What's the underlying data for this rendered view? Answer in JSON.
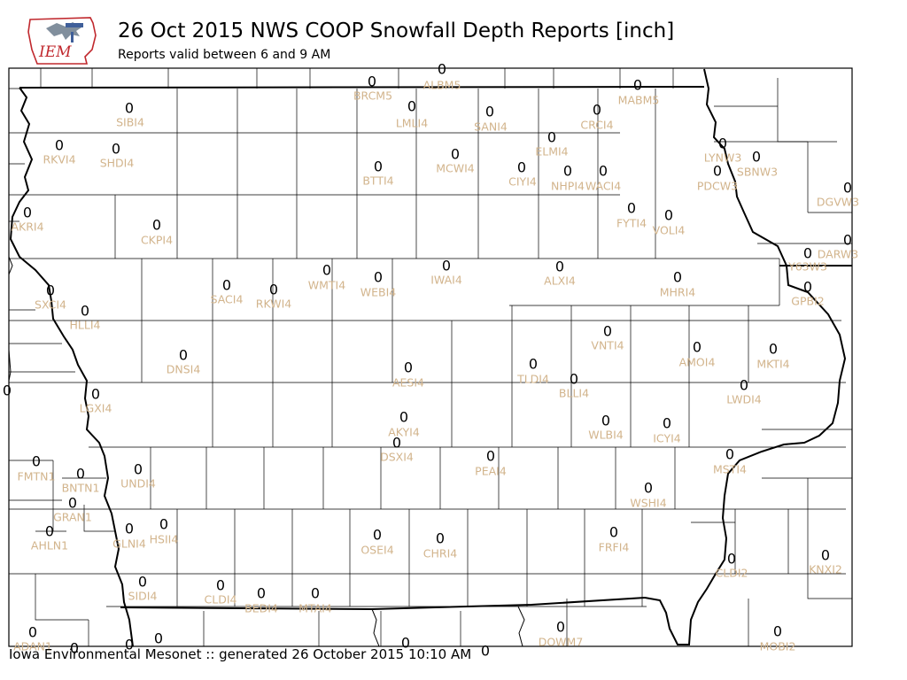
{
  "header": {
    "title": "26 Oct 2015 NWS COOP Snowfall Depth Reports [inch]",
    "subtitle": "Reports valid between 6 and 9 AM",
    "logo_text": "IEM"
  },
  "footer": {
    "text": "Iowa Environmental Mesonet :: generated 26 October 2015 10:10 AM"
  },
  "colors": {
    "label": "#d2b48c",
    "value": "#000000",
    "border": "#000000",
    "logo_red": "#c0282d"
  },
  "stations": [
    {
      "id": "BRCM5",
      "value": "0"
    },
    {
      "id": "ALBM5",
      "value": "0"
    },
    {
      "id": "MABM5",
      "value": "0"
    },
    {
      "id": "SIBI4",
      "value": "0"
    },
    {
      "id": "LMLI4",
      "value": "0"
    },
    {
      "id": "SANI4",
      "value": "0"
    },
    {
      "id": "CRCI4",
      "value": "0"
    },
    {
      "id": "RKVI4",
      "value": "0"
    },
    {
      "id": "SHDI4",
      "value": "0"
    },
    {
      "id": "ELMI4",
      "value": "0"
    },
    {
      "id": "MCWI4",
      "value": "0"
    },
    {
      "id": "LYNW3",
      "value": "0"
    },
    {
      "id": "SBNW3",
      "value": "0"
    },
    {
      "id": "BTTI4",
      "value": "0"
    },
    {
      "id": "CIYI4",
      "value": "0"
    },
    {
      "id": "NHPI4",
      "value": "0"
    },
    {
      "id": "WACI4",
      "value": "0"
    },
    {
      "id": "PDCW3",
      "value": "0"
    },
    {
      "id": "DGVW3",
      "value": "0"
    },
    {
      "id": "AKRI4",
      "value": "0"
    },
    {
      "id": "CKPI4",
      "value": "0"
    },
    {
      "id": "FYTI4",
      "value": "0"
    },
    {
      "id": "VOLI4",
      "value": "0"
    },
    {
      "id": "DARW3",
      "value": "0"
    },
    {
      "id": "Y63W3",
      "value": "0"
    },
    {
      "id": "SXCI4",
      "value": "0"
    },
    {
      "id": "SACI4",
      "value": "0"
    },
    {
      "id": "RKWI4",
      "value": "0"
    },
    {
      "id": "WMTI4",
      "value": "0"
    },
    {
      "id": "WEBI4",
      "value": "0"
    },
    {
      "id": "IWAI4",
      "value": "0"
    },
    {
      "id": "ALXI4",
      "value": "0"
    },
    {
      "id": "MHRI4",
      "value": "0"
    },
    {
      "id": "GPBI2",
      "value": "0"
    },
    {
      "id": "HLLI4",
      "value": "0"
    },
    {
      "id": "VNTI4",
      "value": "0"
    },
    {
      "id": "AMOI4",
      "value": "0"
    },
    {
      "id": "MKTI4",
      "value": "0"
    },
    {
      "id": "DNSI4",
      "value": "0"
    },
    {
      "id": "AESI4",
      "value": "0"
    },
    {
      "id": "TLDI4",
      "value": "0"
    },
    {
      "id": "BLLI4",
      "value": "0"
    },
    {
      "id": "LWDI4",
      "value": "0"
    },
    {
      "id": "LGXI4",
      "value": "0"
    },
    {
      "id": "AKYI4",
      "value": "0"
    },
    {
      "id": "WLBI4",
      "value": "0"
    },
    {
      "id": "ICYI4",
      "value": "0"
    },
    {
      "id": "DSXI4",
      "value": "0"
    },
    {
      "id": "FMTN1",
      "value": "0"
    },
    {
      "id": "BNTN1",
      "value": "0"
    },
    {
      "id": "UNDI4",
      "value": "0"
    },
    {
      "id": "PEAI4",
      "value": "0"
    },
    {
      "id": "MSTI4",
      "value": "0"
    },
    {
      "id": "GRAN1",
      "value": "0"
    },
    {
      "id": "WSHI4",
      "value": "0"
    },
    {
      "id": "AHLN1",
      "value": "0"
    },
    {
      "id": "GLNI4",
      "value": "0"
    },
    {
      "id": "HSII4",
      "value": "0"
    },
    {
      "id": "OSEI4",
      "value": "0"
    },
    {
      "id": "CHRI4",
      "value": "0"
    },
    {
      "id": "FRFI4",
      "value": "0"
    },
    {
      "id": "KNXI2",
      "value": "0"
    },
    {
      "id": "CLDI2",
      "value": "0"
    },
    {
      "id": "SIDI4",
      "value": "0"
    },
    {
      "id": "CLDI4",
      "value": "0"
    },
    {
      "id": "BEDI4",
      "value": "0"
    },
    {
      "id": "MTAI4",
      "value": "0"
    },
    {
      "id": "DOWM7",
      "value": "0"
    },
    {
      "id": "MOBI2",
      "value": "0"
    },
    {
      "id": "ADAN1",
      "value": "0"
    }
  ],
  "extra_values": [
    "0",
    "0",
    "0",
    "0",
    "0",
    "0"
  ]
}
